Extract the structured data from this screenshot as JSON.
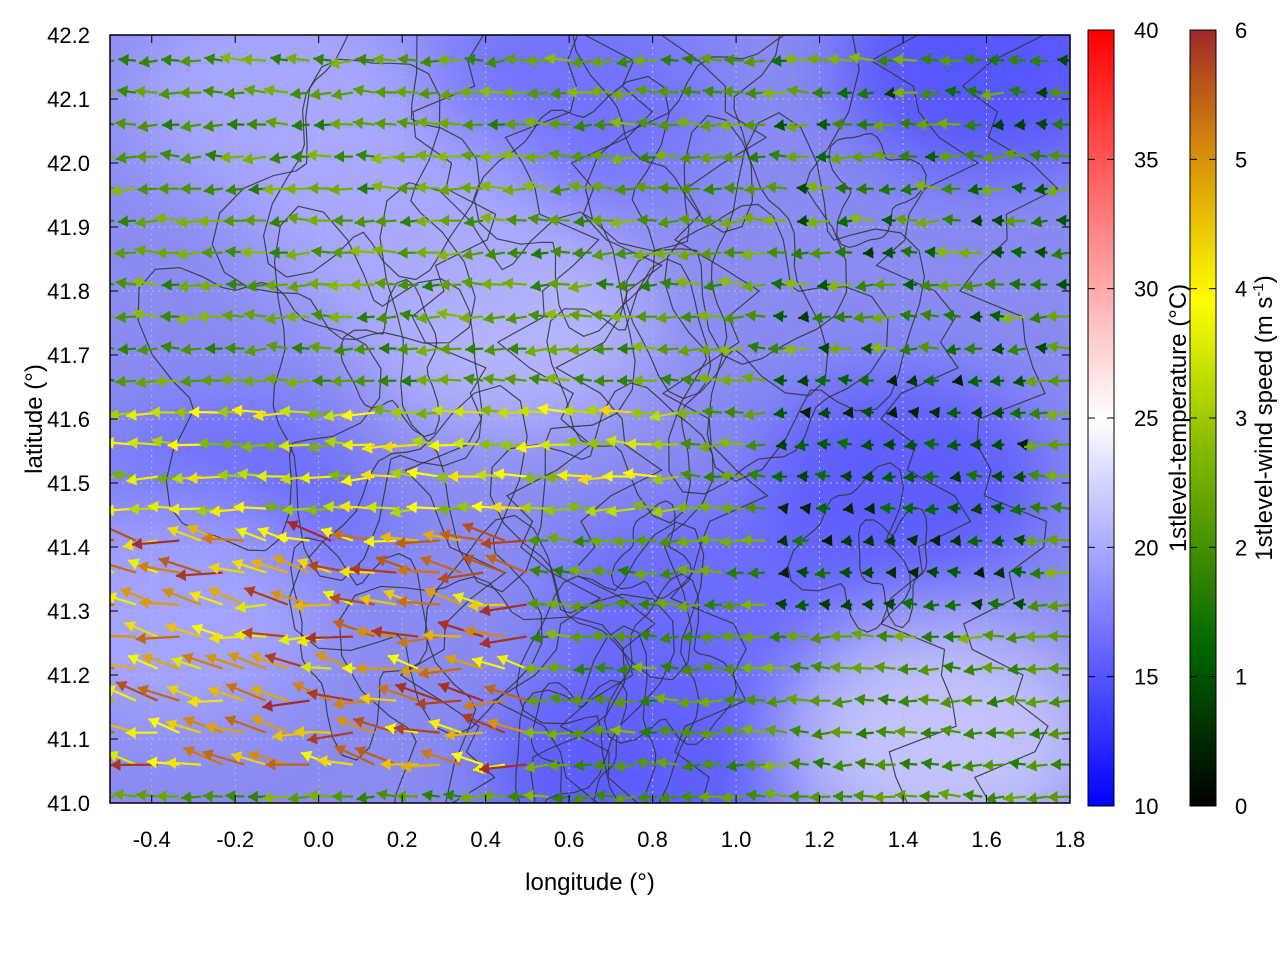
{
  "chart_data": {
    "type": "heatmap",
    "xlabel": "longitude (°)",
    "ylabel": "latitude (°)",
    "xlim": [
      -0.5,
      1.8
    ],
    "ylim": [
      41.0,
      42.2
    ],
    "xticks": [
      "-0.4",
      "-0.2",
      "0.0",
      "0.2",
      "0.4",
      "0.6",
      "0.8",
      "1.0",
      "1.2",
      "1.4",
      "1.6",
      "1.8"
    ],
    "xtick_values": [
      -0.4,
      -0.2,
      0.0,
      0.2,
      0.4,
      0.6,
      0.8,
      1.0,
      1.2,
      1.4,
      1.6,
      1.8
    ],
    "yticks": [
      "41.0",
      "41.1",
      "41.2",
      "41.3",
      "41.4",
      "41.5",
      "41.6",
      "41.7",
      "41.8",
      "41.9",
      "42.0",
      "42.1",
      "42.2"
    ],
    "ytick_values": [
      41.0,
      41.1,
      41.2,
      41.3,
      41.4,
      41.5,
      41.6,
      41.7,
      41.8,
      41.9,
      42.0,
      42.1,
      42.2
    ],
    "grid": true,
    "temperature_colorbar": {
      "title": "1stlevel-temperature (°C)",
      "range": [
        10,
        40
      ],
      "ticks": [
        "10",
        "15",
        "20",
        "25",
        "30",
        "35",
        "40"
      ],
      "tick_values": [
        10,
        15,
        20,
        25,
        30,
        35,
        40
      ],
      "colors": [
        "#0000ff",
        "#ffffff",
        "#ff0000"
      ]
    },
    "wind_colorbar": {
      "title_main": "1stlevel-wind speed (m s",
      "title_sup": "-1",
      "title_end": ")",
      "range": [
        0,
        6
      ],
      "ticks": [
        "0",
        "1",
        "2",
        "3",
        "4",
        "5",
        "6"
      ],
      "tick_values": [
        0,
        1,
        2,
        3,
        4,
        5,
        6
      ],
      "colors": [
        "#000000",
        "#006400",
        "#7fb800",
        "#ffff00",
        "#d4880a",
        "#a0282a"
      ]
    },
    "temperature_field": {
      "background_range_c": [
        15,
        22
      ],
      "cool_regions": [
        {
          "lon": 0.75,
          "lat": 41.05,
          "temp": 15
        },
        {
          "lon": 1.6,
          "lat": 42.15,
          "temp": 14.5
        },
        {
          "lon": 1.4,
          "lat": 41.5,
          "temp": 15
        },
        {
          "lon": 0.9,
          "lat": 41.3,
          "temp": 16
        },
        {
          "lon": -0.2,
          "lat": 41.45,
          "temp": 16
        },
        {
          "lon": 0.6,
          "lat": 42.1,
          "temp": 16.5
        }
      ],
      "warm_regions": [
        {
          "lon": 1.5,
          "lat": 41.1,
          "temp": 22
        },
        {
          "lon": 0.45,
          "lat": 41.75,
          "temp": 21
        },
        {
          "lon": -0.35,
          "lat": 41.3,
          "temp": 20
        },
        {
          "lon": 0.2,
          "lat": 41.9,
          "temp": 20
        },
        {
          "lon": -0.1,
          "lat": 42.1,
          "temp": 20
        }
      ]
    },
    "wind_field": {
      "dominant_direction": "from east (vectors point west)",
      "strong_wind_region": {
        "lon_range": [
          -0.5,
          0.5
        ],
        "lat_range": [
          41.05,
          41.45
        ],
        "speed_max": 6
      },
      "moderate_wind_band": {
        "lon_range": [
          -0.5,
          0.9
        ],
        "lat_range": [
          41.45,
          41.65
        ],
        "speed": 4
      },
      "calm_region": {
        "lon_range": [
          1.1,
          1.7
        ],
        "lat_range": [
          41.3,
          41.7
        ],
        "speed": 0.5
      },
      "southeast_easterly": {
        "lon_range": [
          1.15,
          1.8
        ],
        "lat_range": [
          41.0,
          41.25
        ],
        "speed": 2
      }
    },
    "contours": {
      "color": "#333333",
      "description": "terrain height isolines"
    }
  }
}
